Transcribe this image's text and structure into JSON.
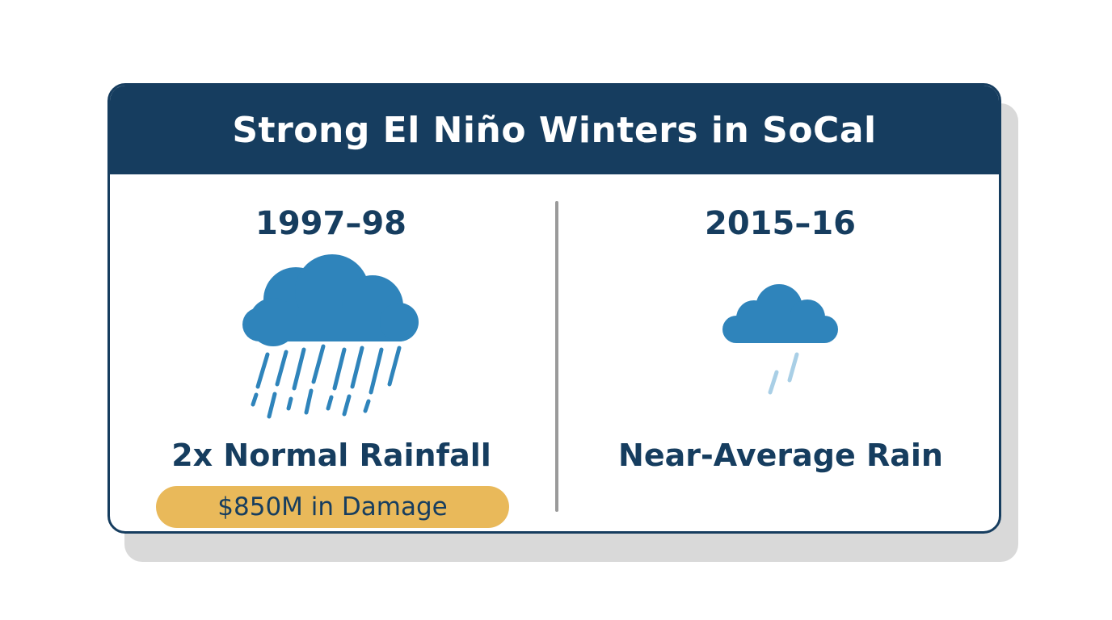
{
  "title": "Strong El Niño Winters in SoCal",
  "left": {
    "year": "1997–98",
    "icon": "heavy-rain-cloud-icon",
    "outcome": "2x Normal Rainfall",
    "badge": "$850M in Damage"
  },
  "right": {
    "year": "2015–16",
    "icon": "light-rain-cloud-icon",
    "outcome": "Near-Average Rain"
  },
  "colors": {
    "navy": "#163d5f",
    "cloud_blue": "#2f84bb",
    "light_rain": "#a9cfe6",
    "badge_gold": "#e9b95a",
    "divider_gray": "#9a9a9a",
    "shadow_gray": "#d9d9d9"
  }
}
